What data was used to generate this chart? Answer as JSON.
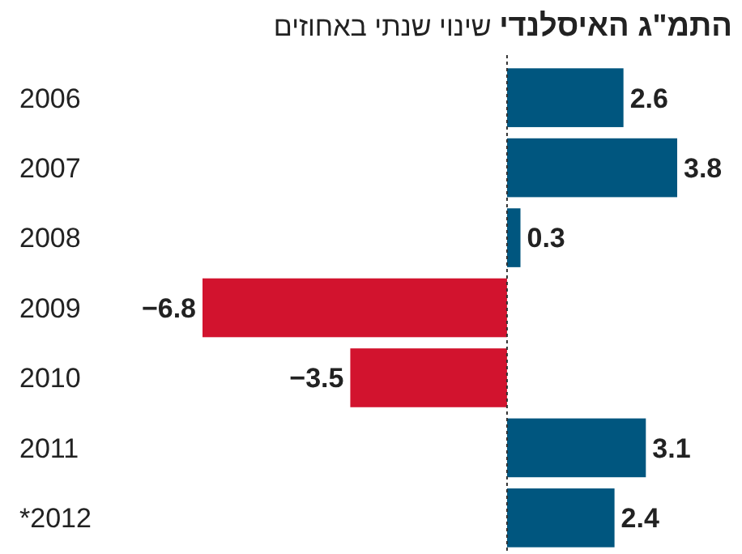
{
  "chart_data": {
    "type": "bar",
    "orientation": "horizontal",
    "title": "התמ\"ג האיסלנדי",
    "subtitle": "שינוי שנתי באחוזים",
    "categories": [
      "2006",
      "2007",
      "2008",
      "2009",
      "2010",
      "2011",
      "*2012"
    ],
    "values": [
      2.6,
      3.8,
      0.3,
      -6.8,
      -3.5,
      3.1,
      2.4
    ],
    "colors": [
      "#00567f",
      "#00567f",
      "#00567f",
      "#d2132e",
      "#d2132e",
      "#00567f",
      "#00567f"
    ],
    "value_labels": [
      "2.6",
      "3.8",
      "0.3",
      "−6.8",
      "−3.5",
      "3.1",
      "2.4"
    ],
    "ref_lines": [
      {
        "axis": "x",
        "value": 0,
        "color": "#333333",
        "line_style": "dotted"
      }
    ]
  }
}
